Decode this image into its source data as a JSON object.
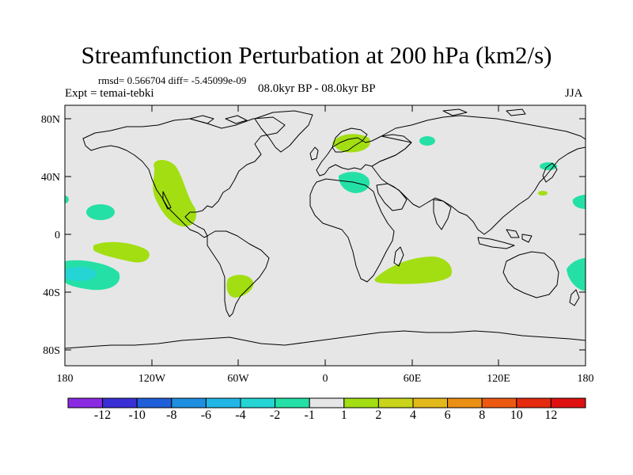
{
  "title": "Streamfunction Perturbation at 200 hPa (km2/s)",
  "stats_line": "rmsd= 0.566704 diff= -5.45099e-09",
  "experiment": "Expt = temai-tebki",
  "period": "08.0kyr BP - 08.0kyr BP",
  "season": "JJA",
  "lat_ticks": [
    "80N",
    "40N",
    "0",
    "40S",
    "80S"
  ],
  "lon_ticks": [
    "180",
    "120W",
    "60W",
    "0",
    "60E",
    "120E",
    "180"
  ],
  "colorbar": {
    "labels": [
      "-12",
      "-10",
      "-8",
      "-6",
      "-4",
      "-2",
      "-1",
      "1",
      "2",
      "4",
      "6",
      "8",
      "10",
      "12"
    ],
    "colors": [
      "#8a2be2",
      "#3a2fd6",
      "#1f5fd9",
      "#1e8fe0",
      "#22b6e6",
      "#25d4d4",
      "#25e0a6",
      "#e6e6e6",
      "#a2de12",
      "#c9d41a",
      "#e3b81a",
      "#eb8f15",
      "#ec5a12",
      "#e62a0e",
      "#e01010"
    ]
  },
  "anomalies": [
    {
      "name": "n-pacific-positive",
      "sign": "positive",
      "lon": -110,
      "lat": 20
    },
    {
      "name": "central-pacific-negative",
      "sign": "negative",
      "lon": -165,
      "lat": 15
    },
    {
      "name": "s-pacific-positive",
      "sign": "positive",
      "lon": -145,
      "lat": -12
    },
    {
      "name": "se-pacific-negative",
      "sign": "negative",
      "lon": -165,
      "lat": -30
    },
    {
      "name": "s-america-positive",
      "sign": "positive",
      "lon": -62,
      "lat": -38
    },
    {
      "name": "scandinavia-positive",
      "sign": "positive",
      "lon": 22,
      "lat": 68
    },
    {
      "name": "mediterranean-negative",
      "sign": "negative",
      "lon": 25,
      "lat": 38
    },
    {
      "name": "siberia-negative",
      "sign": "negative",
      "lon": 72,
      "lat": 68
    },
    {
      "name": "indian-ocean-positive",
      "sign": "positive",
      "lon": 60,
      "lat": -27
    },
    {
      "name": "nw-pacific-negative",
      "sign": "negative",
      "lon": 155,
      "lat": 47
    },
    {
      "name": "w-pacific-positive",
      "sign": "positive",
      "lon": 150,
      "lat": 28
    },
    {
      "name": "dateline-negative",
      "sign": "negative",
      "lon": 175,
      "lat": 22
    },
    {
      "name": "sw-pacific-negative",
      "sign": "negative",
      "lon": 178,
      "lat": -28
    }
  ]
}
